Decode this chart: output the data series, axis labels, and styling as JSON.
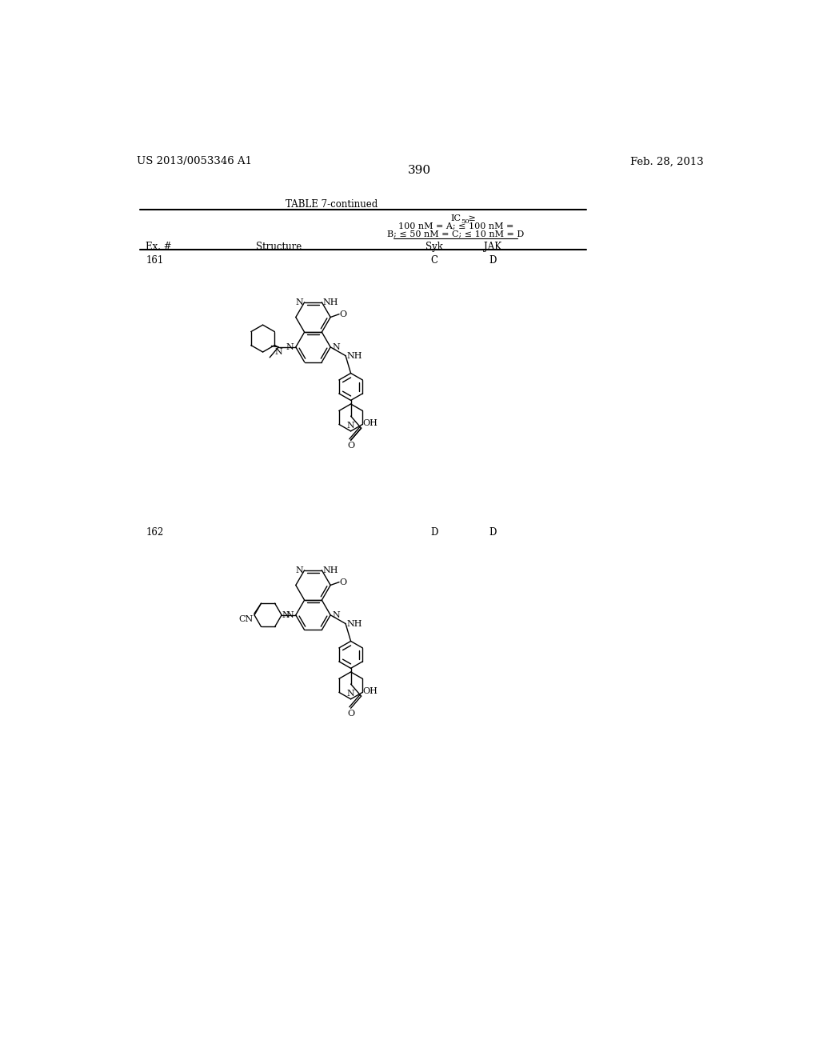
{
  "page_number": "390",
  "patent_number": "US 2013/0053346 A1",
  "patent_date": "Feb. 28, 2013",
  "table_title": "TABLE 7-continued",
  "ic50_line1": "IC",
  "ic50_line1_sub": "50",
  "ic50_line1_suffix": " ≥",
  "ic50_line2": "100 nM = A; ≤ 100 nM =",
  "ic50_line3": "B; ≤ 50 nM = C; ≤ 10 nM = D",
  "col_ex": "Ex. #",
  "col_struct": "Structure",
  "col_syk": "Syk",
  "col_jak": "JAK",
  "row161_ex": "161",
  "row161_syk": "C",
  "row161_jak": "D",
  "row162_ex": "162",
  "row162_syk": "D",
  "row162_jak": "D",
  "bg": "#ffffff",
  "fg": "#000000"
}
